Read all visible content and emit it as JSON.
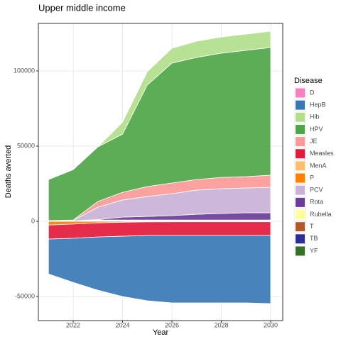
{
  "chart_data": {
    "type": "stacked_area",
    "title": "Upper middle income",
    "x_label": "Year",
    "y_label": "Deaths averted",
    "legend_title": "Disease",
    "x": [
      2021,
      2022,
      2023,
      2024,
      2025,
      2026,
      2027,
      2028,
      2029,
      2030
    ],
    "xlim": [
      2020.59,
      2030.49
    ],
    "xticks": [
      2022,
      2024,
      2026,
      2028,
      2030
    ],
    "ylim": [
      -66000,
      131600
    ],
    "yticks": [
      -50000,
      0,
      50000,
      100000
    ],
    "grid": true,
    "legend_position": "right",
    "series": [
      {
        "name": "D",
        "color": "#f781bf",
        "values": [
          0,
          0,
          0,
          0,
          0,
          0,
          0,
          0,
          0,
          0
        ]
      },
      {
        "name": "HepB",
        "color": "#3a78b5",
        "values": [
          -23200,
          -29300,
          -35400,
          -40100,
          -43400,
          -44800,
          -44800,
          -44800,
          -44800,
          -45300
        ]
      },
      {
        "name": "Hib",
        "color": "#b2df8a",
        "values": [
          0,
          0,
          0,
          8000,
          8900,
          9900,
          10800,
          10800,
          10800,
          10800
        ]
      },
      {
        "name": "HPV",
        "color": "#4ea646",
        "values": [
          27300,
          33500,
          36300,
          38700,
          67500,
          79700,
          81200,
          82600,
          84000,
          84900
        ]
      },
      {
        "name": "JE",
        "color": "#fb9a99",
        "values": [
          200,
          300,
          3800,
          5100,
          6600,
          7100,
          7000,
          7500,
          7500,
          8100
        ]
      },
      {
        "name": "Measles",
        "color": "#e31a3c",
        "values": [
          -9300,
          -9500,
          -9400,
          -9300,
          -9000,
          -9100,
          -9100,
          -9100,
          -9100,
          -9100
        ]
      },
      {
        "name": "MenA",
        "color": "#fdbf6f",
        "values": [
          0,
          0,
          0,
          0,
          0,
          0,
          0,
          0,
          0,
          0
        ]
      },
      {
        "name": "P",
        "color": "#ff7f00",
        "values": [
          -2500,
          -1800,
          -1000,
          -600,
          -400,
          -300,
          -300,
          -300,
          -300,
          -300
        ]
      },
      {
        "name": "PCV",
        "color": "#cab2d6",
        "values": [
          100,
          300,
          8200,
          11400,
          13200,
          14600,
          16100,
          16500,
          16500,
          16900
        ]
      },
      {
        "name": "Rota",
        "color": "#6a3d9a",
        "values": [
          0,
          100,
          300,
          1900,
          2400,
          2900,
          3800,
          4300,
          4800,
          4800
        ]
      },
      {
        "name": "Rubella",
        "color": "#ffff99",
        "values": [
          50,
          50,
          200,
          200,
          200,
          200,
          200,
          200,
          200,
          200
        ]
      },
      {
        "name": "T",
        "color": "#b15928",
        "values": [
          50,
          50,
          300,
          300,
          300,
          300,
          300,
          300,
          300,
          300
        ]
      },
      {
        "name": "TB",
        "color": "#2c2c9a",
        "values": [
          50,
          50,
          200,
          200,
          200,
          200,
          200,
          200,
          200,
          200
        ]
      },
      {
        "name": "YF",
        "color": "#35702b",
        "values": [
          50,
          50,
          200,
          200,
          200,
          200,
          200,
          200,
          200,
          200
        ]
      }
    ]
  }
}
